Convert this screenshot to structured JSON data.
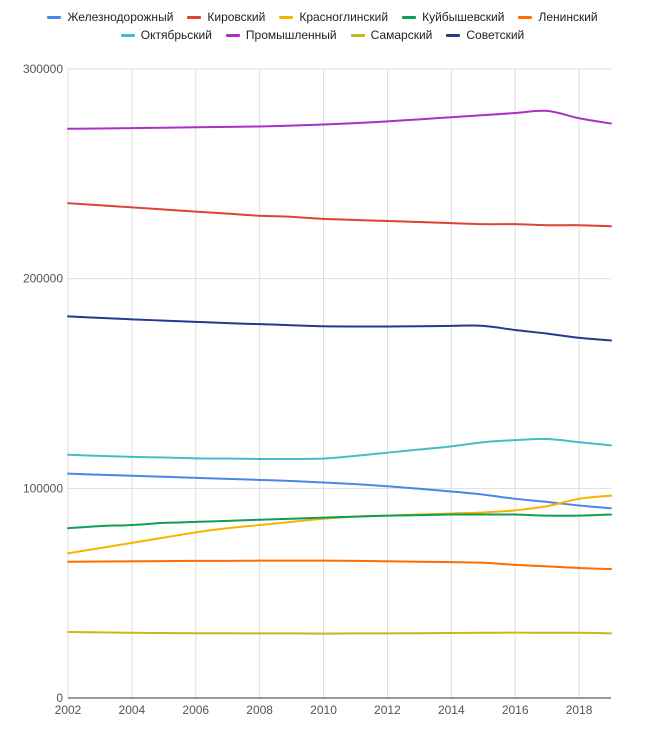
{
  "chart_data": {
    "type": "line",
    "title": "",
    "xlabel": "",
    "ylabel": "",
    "xlim": [
      2002,
      2019
    ],
    "ylim": [
      0,
      300000
    ],
    "x_ticks": [
      2002,
      2004,
      2006,
      2008,
      2010,
      2012,
      2014,
      2016,
      2018
    ],
    "x_tick_labels": [
      "2002",
      "2004",
      "2006",
      "2008",
      "2010",
      "2012",
      "2014",
      "2016",
      "2018"
    ],
    "y_ticks": [
      0,
      100000,
      200000,
      300000
    ],
    "y_tick_labels": [
      "0",
      "100000",
      "200000",
      "300000"
    ],
    "grid": true,
    "legend_position": "top",
    "x": [
      2002,
      2003,
      2004,
      2005,
      2006,
      2007,
      2008,
      2009,
      2010,
      2011,
      2012,
      2013,
      2014,
      2015,
      2016,
      2017,
      2018,
      2019
    ],
    "series": [
      {
        "name": "Железнодорожный",
        "color": "#4a86e8",
        "values": [
          107000,
          106500,
          106000,
          105500,
          105000,
          104500,
          104000,
          103500,
          102800,
          102000,
          101000,
          99800,
          98500,
          97000,
          95000,
          93500,
          91800,
          90500
        ]
      },
      {
        "name": "Кировский",
        "color": "#db4437",
        "values": [
          236000,
          235000,
          234000,
          233000,
          232000,
          231000,
          230000,
          229500,
          228500,
          228000,
          227500,
          227000,
          226500,
          226000,
          226000,
          225500,
          225500,
          225000
        ]
      },
      {
        "name": "Красноглинский",
        "color": "#f4b400",
        "values": [
          69000,
          71500,
          74000,
          76500,
          79000,
          81000,
          82500,
          84000,
          85500,
          86500,
          87000,
          87500,
          88000,
          88500,
          89500,
          91500,
          95000,
          96500
        ]
      },
      {
        "name": "Куйбышевский",
        "color": "#0f9d58",
        "values": [
          81000,
          82000,
          82500,
          83500,
          84000,
          84500,
          85000,
          85500,
          86000,
          86500,
          87000,
          87200,
          87500,
          87500,
          87500,
          87000,
          87000,
          87500
        ]
      },
      {
        "name": "Ленинский",
        "color": "#ff6d00",
        "values": [
          65000,
          65100,
          65200,
          65300,
          65400,
          65400,
          65500,
          65500,
          65500,
          65400,
          65200,
          65000,
          64800,
          64500,
          63500,
          62800,
          62000,
          61500
        ]
      },
      {
        "name": "Октябрьский",
        "color": "#46bdc6",
        "values": [
          116000,
          115500,
          115000,
          114700,
          114300,
          114200,
          114000,
          114000,
          114200,
          115500,
          117000,
          118500,
          120000,
          122000,
          123000,
          123500,
          122000,
          120500
        ]
      },
      {
        "name": "Промышленный",
        "color": "#ab30c4",
        "values": [
          271500,
          271600,
          271800,
          272000,
          272200,
          272400,
          272600,
          273000,
          273500,
          274200,
          275000,
          276000,
          277000,
          278000,
          279000,
          280000,
          276500,
          274000
        ]
      },
      {
        "name": "Самарский",
        "color": "#c6b81d",
        "values": [
          31500,
          31300,
          31100,
          31000,
          30900,
          30900,
          30800,
          30800,
          30700,
          30800,
          30800,
          30900,
          31000,
          31100,
          31200,
          31100,
          31100,
          30800
        ]
      },
      {
        "name": "Советский",
        "color": "#26388f",
        "values": [
          182000,
          181300,
          180600,
          180000,
          179400,
          178800,
          178300,
          177800,
          177300,
          177200,
          177200,
          177300,
          177500,
          177500,
          175500,
          173800,
          171800,
          170500
        ]
      }
    ]
  }
}
